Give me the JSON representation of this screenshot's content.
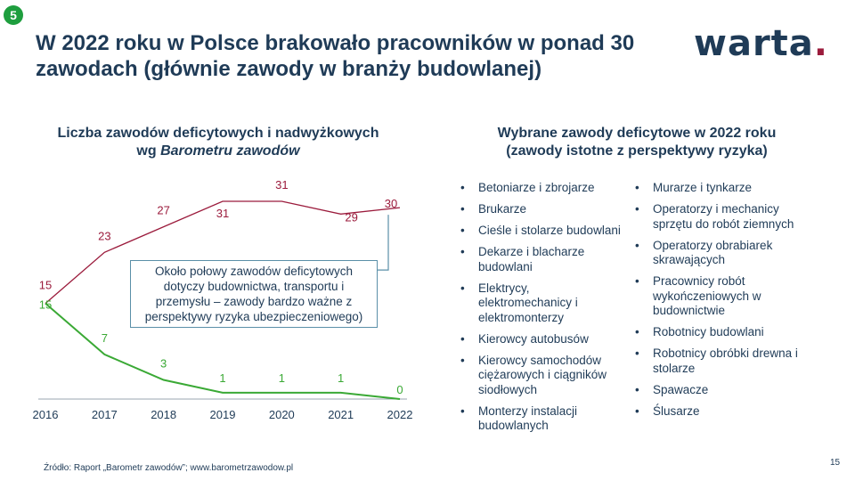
{
  "slide": {
    "badge": "5",
    "title_line1": "W 2022 roku w Polsce brakowało pracowników w ponad 30",
    "title_line2": "zawodach (głównie zawody w branży budowlanej)",
    "logo_text": "warta",
    "logo_dot": ".",
    "page_number": "15",
    "source": "Źródło: Raport „Barometr zawodów”; www.barometrzawodow.pl"
  },
  "left": {
    "title_line1": "Liczba zawodów deficytowych i nadwyżkowych",
    "title_line2_prefix": "wg ",
    "title_line2_italic": "Barometru zawodów"
  },
  "note": {
    "line1": "Około połowy zawodów deficytowych",
    "line2": "dotyczy budownictwa, transportu i",
    "line3": "przemysłu – zawody bardzo ważne z",
    "line4": "perspektywy ryzyka ubezpieczeniowego)"
  },
  "right": {
    "title_line1": "Wybrane zawody deficytowe w 2022 roku",
    "title_line2": "(zawody istotne z perspektywy ryzyka)",
    "col1": [
      "Betoniarze i zbrojarze",
      "Brukarze",
      "Cieśle i stolarze budowlani",
      "Dekarze i blacharze budowlani",
      "Elektrycy, elektromechanicy i elektromonterzy",
      "Kierowcy autobusów",
      "Kierowcy samochodów ciężarowych i ciągników siodłowych",
      "Monterzy instalacji budowlanych"
    ],
    "col2": [
      "Murarze i tynkarze",
      "Operatorzy i mechanicy sprzętu do robót ziemnych",
      "Operatorzy obrabiarek skrawających",
      "Pracownicy robót wykończeniowych w budownictwie",
      "Robotnicy budowlani",
      "Robotnicy obróbki drewna i stolarze",
      "Spawacze",
      "Ślusarze"
    ]
  },
  "chart_data": {
    "type": "line",
    "title": "Liczba zawodów deficytowych i nadwyżkowych wg Barometru zawodów",
    "x": [
      "2016",
      "2017",
      "2018",
      "2019",
      "2020",
      "2021",
      "2022"
    ],
    "series": [
      {
        "values": [
          15,
          23,
          27,
          31,
          31,
          29,
          30
        ],
        "color": "#9b1b3c"
      },
      {
        "values": [
          15,
          7,
          3,
          1,
          1,
          1,
          0
        ],
        "color": "#3aa935"
      }
    ],
    "xlabel": "",
    "ylabel": "",
    "ylim": [
      0,
      31
    ],
    "grid": false,
    "legend": "none"
  }
}
